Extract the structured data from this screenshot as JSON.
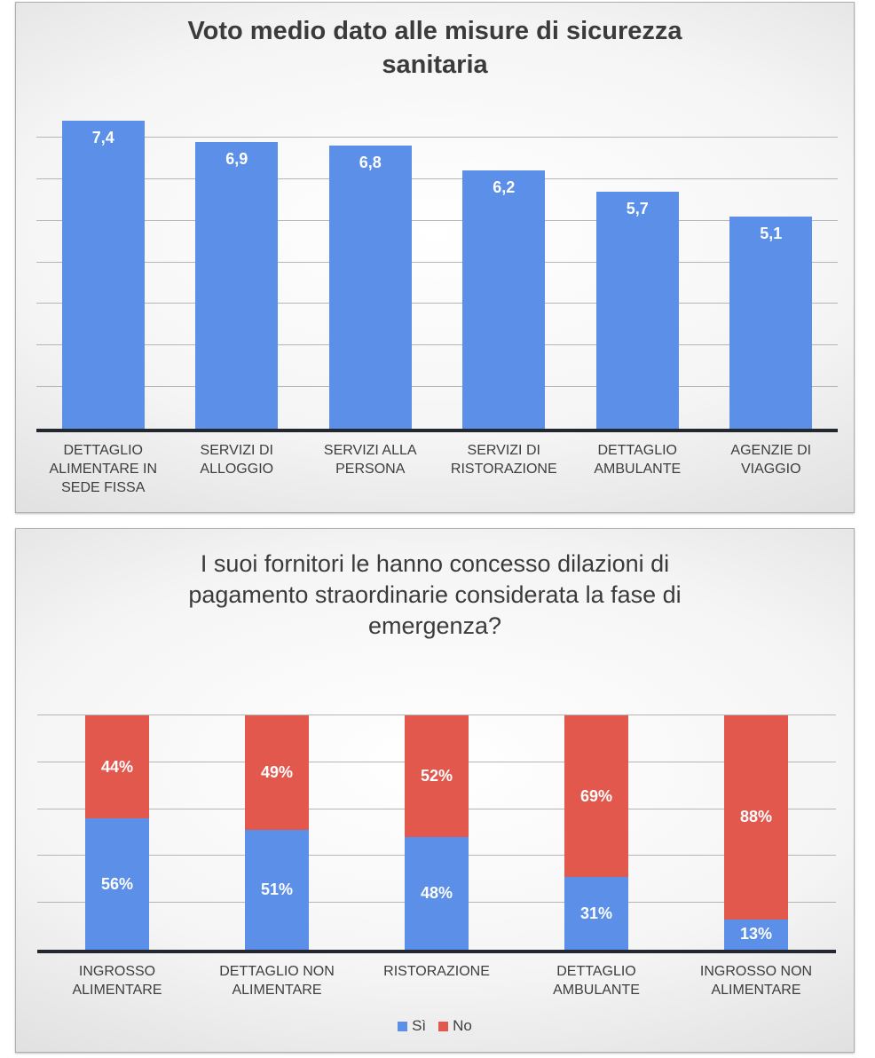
{
  "chart_data": [
    {
      "type": "bar",
      "title": "Voto medio dato alle misure di sicurezza sanitaria",
      "categories": [
        "DETTAGLIO ALIMENTARE IN SEDE FISSA",
        "SERVIZI DI ALLOGGIO",
        "SERVIZI ALLA PERSONA",
        "SERVIZI DI RISTORAZIONE",
        "DETTAGLIO AMBULANTE",
        "AGENZIE DI VIAGGIO"
      ],
      "values": [
        7.4,
        6.9,
        6.8,
        6.2,
        5.7,
        5.1
      ],
      "value_labels": [
        "7,4",
        "6,9",
        "6,8",
        "6,2",
        "5,7",
        "5,1"
      ],
      "xlabel": "",
      "ylabel": "",
      "ylim": [
        0,
        8
      ],
      "grid_step": 1,
      "grid_line_at_max": false,
      "legend_position": "none",
      "colors": {
        "bar": "#5B8FE8",
        "value_label": "#FFFFFF",
        "axis": "#23272F",
        "gridline": "#B5B5B5"
      }
    },
    {
      "type": "stacked-bar",
      "title": "I suoi fornitori le hanno concesso dilazioni di pagamento straordinarie considerata la fase di emergenza?",
      "categories": [
        "INGROSSO ALIMENTARE",
        "DETTAGLIO NON ALIMENTARE",
        "RISTORAZIONE",
        "DETTAGLIO AMBULANTE",
        "INGROSSO NON ALIMENTARE"
      ],
      "series": [
        {
          "name": "Sì",
          "color": "#5B8FE8",
          "values": [
            56,
            51,
            48,
            31,
            13
          ],
          "labels": [
            "56%",
            "51%",
            "48%",
            "31%",
            "13%"
          ]
        },
        {
          "name": "No",
          "color": "#E2584D",
          "values": [
            44,
            49,
            52,
            69,
            88
          ],
          "labels": [
            "44%",
            "49%",
            "52%",
            "69%",
            "88%"
          ]
        }
      ],
      "xlabel": "",
      "ylabel": "",
      "ylim": [
        0,
        100
      ],
      "grid_step": 20,
      "grid_line_at_max": true,
      "legend_position": "bottom",
      "colors": {
        "value_label": "#FFFFFF",
        "axis": "#23272F",
        "gridline": "#B5B5B5"
      }
    }
  ]
}
